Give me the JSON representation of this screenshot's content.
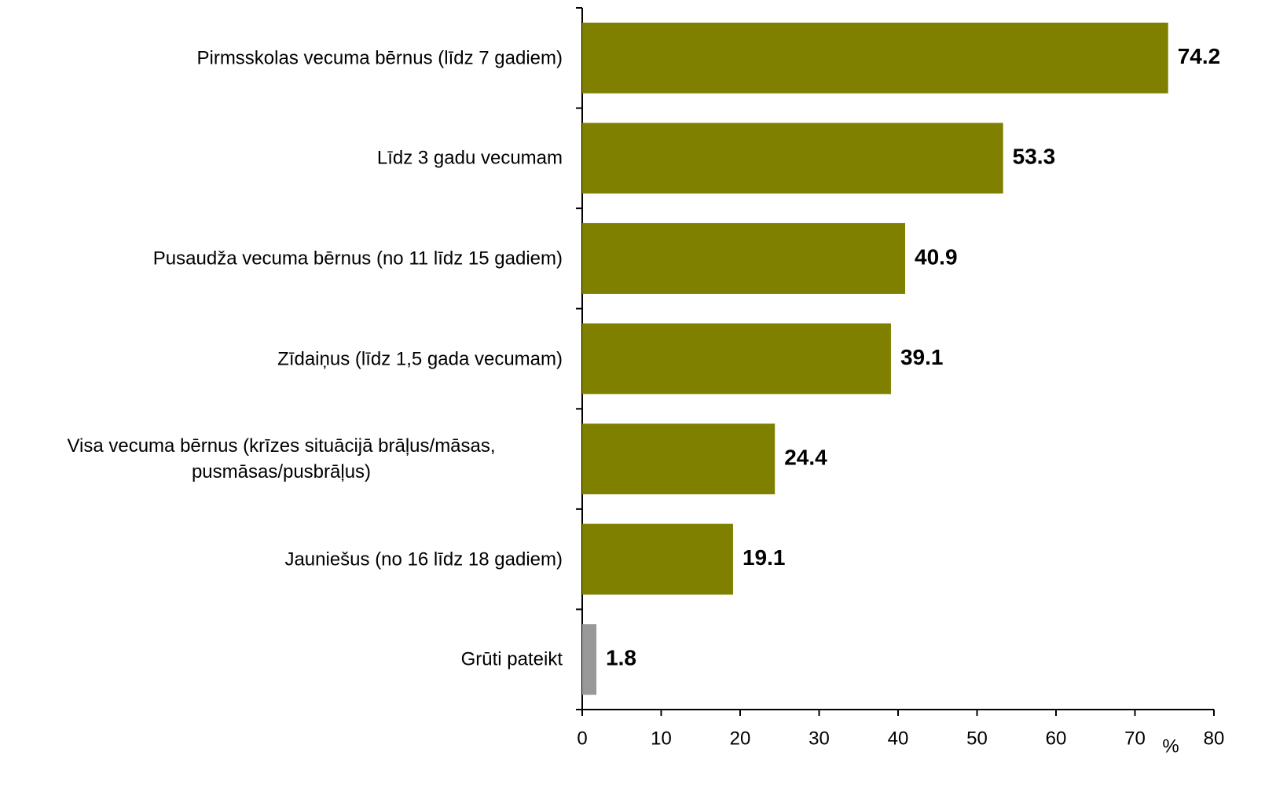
{
  "chart_data": {
    "type": "bar",
    "orientation": "horizontal",
    "categories": [
      "Pirmsskolas vecuma bērnus (līdz 7 gadiem)",
      "Līdz 3 gadu vecumam",
      "Pusaudža vecuma bērnus (no 11 līdz 15 gadiem)",
      "Zīdaiņus (līdz 1,5 gada vecumam)",
      "Visa vecuma bērnus (krīzes situācijā brāļus/māsas, pusmāsas/pusbrāļus)",
      "Jauniešus (no 16 līdz 18 gadiem)",
      "Grūti pateikt"
    ],
    "values": [
      74.2,
      53.3,
      40.9,
      39.1,
      24.4,
      19.1,
      1.8
    ],
    "colors": [
      "#808000",
      "#808000",
      "#808000",
      "#808000",
      "#808000",
      "#808000",
      "#999999"
    ],
    "xlabel": "%",
    "xlim": [
      0,
      80
    ],
    "xticks": [
      0,
      10,
      20,
      30,
      40,
      50,
      60,
      70,
      80
    ]
  }
}
